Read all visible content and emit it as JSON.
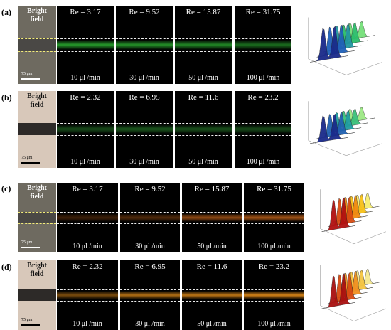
{
  "units": {
    "scale": "75 μm"
  },
  "bright_field_title": [
    "Bright",
    "field"
  ],
  "rows": [
    {
      "label": "(a)",
      "re": [
        "Re = 3.17",
        "Re = 9.52",
        "Re = 15.87",
        "Re = 31.75"
      ],
      "flow": [
        "10 μl /min",
        "30 μl /min",
        "50 μl /min",
        "100 μl /min"
      ],
      "band_color": "#2cb532",
      "intensity": [
        0.85,
        0.8,
        0.75,
        0.6
      ]
    },
    {
      "label": "(b)",
      "re": [
        "Re = 2.32",
        "Re = 6.95",
        "Re = 11.6",
        "Re = 23.2"
      ],
      "flow": [
        "10 μl /min",
        "30 μl /min",
        "50 μl /min",
        "100 μl /min"
      ],
      "band_color": "#2a8c2e",
      "intensity": [
        0.55,
        0.65,
        0.6,
        0.55
      ]
    },
    {
      "label": "(c)",
      "re": [
        "Re = 3.17",
        "Re = 9.52",
        "Re = 15.87",
        "Re = 31.75"
      ],
      "flow": [
        "10 μl /min",
        "30 μl /min",
        "50 μl /min",
        "100 μl /min"
      ],
      "band_color": "#d06a1c",
      "intensity": [
        0.3,
        0.4,
        0.7,
        0.8
      ]
    },
    {
      "label": "(d)",
      "re": [
        "Re = 2.32",
        "Re = 6.95",
        "Re = 11.6",
        "Re = 23.2"
      ],
      "flow": [
        "10 μl /min",
        "30 μl /min",
        "50 μl /min",
        "100 μl /min"
      ],
      "band_color": "#e08a18",
      "intensity": [
        0.55,
        0.8,
        0.85,
        0.95
      ]
    }
  ],
  "plot_colors": {
    "a": [
      "#1a2a8a",
      "#1f60b8",
      "#2196a0",
      "#2bbd6a",
      "#76e07a"
    ],
    "b": [
      "#1a2a8a",
      "#2060b0",
      "#1f9da0",
      "#3bc07a",
      "#9ce884"
    ],
    "c": [
      "#b01010",
      "#d84a10",
      "#f08a10",
      "#f7c018",
      "#f7ee70"
    ],
    "d": [
      "#a81010",
      "#d84a10",
      "#f09020",
      "#f5c540",
      "#f5e890"
    ]
  }
}
